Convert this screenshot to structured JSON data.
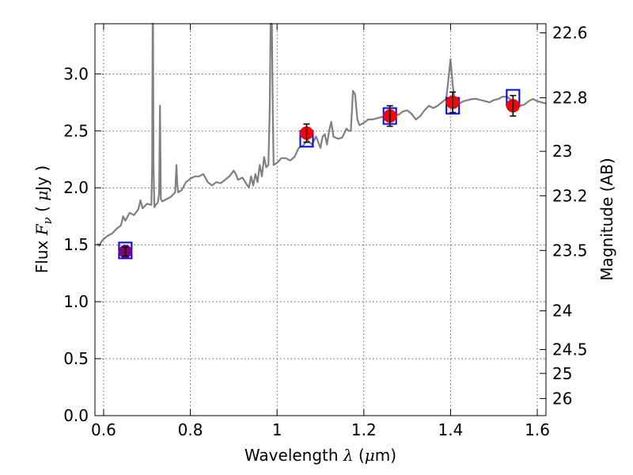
{
  "chart_data": {
    "type": "line",
    "xlabel_parts": [
      "Wavelength ",
      "λ",
      " (",
      "μ",
      "m)"
    ],
    "ylabel_parts": [
      "Flux ",
      "F",
      "ν",
      " ( ",
      "μ",
      "Jy )"
    ],
    "y2label": "Magnitude (AB)",
    "xlim": [
      0.58,
      1.62
    ],
    "ylim": [
      0.0,
      3.44
    ],
    "grid": true,
    "x_ticks": [
      0.6,
      0.8,
      1.0,
      1.2,
      1.4,
      1.6
    ],
    "x_tick_labels": [
      "0.6",
      "0.8",
      "1",
      "1.2",
      "1.4",
      "1.6"
    ],
    "y_ticks": [
      0.0,
      0.5,
      1.0,
      1.5,
      2.0,
      2.5,
      3.0
    ],
    "y_tick_labels": [
      "0.0",
      "0.5",
      "1.0",
      "1.5",
      "2.0",
      "2.5",
      "3.0"
    ],
    "y2_ticks": [
      {
        "flux": 3.36,
        "label": "22.6"
      },
      {
        "flux": 2.79,
        "label": "22.8"
      },
      {
        "flux": 2.32,
        "label": "23"
      },
      {
        "flux": 1.93,
        "label": "23.2"
      },
      {
        "flux": 1.45,
        "label": "23.5"
      },
      {
        "flux": 0.92,
        "label": "24"
      },
      {
        "flux": 0.58,
        "label": "24.5"
      },
      {
        "flux": 0.37,
        "label": "25"
      },
      {
        "flux": 0.15,
        "label": "26"
      }
    ],
    "series": [
      {
        "kind": "line",
        "color": "#808080",
        "points": [
          [
            0.585,
            1.51
          ],
          [
            0.59,
            1.49
          ],
          [
            0.595,
            1.53
          ],
          [
            0.6,
            1.55
          ],
          [
            0.61,
            1.58
          ],
          [
            0.62,
            1.6
          ],
          [
            0.63,
            1.64
          ],
          [
            0.64,
            1.67
          ],
          [
            0.645,
            1.75
          ],
          [
            0.65,
            1.71
          ],
          [
            0.66,
            1.78
          ],
          [
            0.67,
            1.76
          ],
          [
            0.68,
            1.81
          ],
          [
            0.685,
            1.89
          ],
          [
            0.69,
            1.82
          ],
          [
            0.7,
            1.86
          ],
          [
            0.71,
            1.85
          ],
          [
            0.712,
            2.2
          ],
          [
            0.713,
            3.44
          ],
          [
            0.714,
            3.44
          ],
          [
            0.715,
            2.2
          ],
          [
            0.717,
            1.83
          ],
          [
            0.72,
            1.85
          ],
          [
            0.725,
            1.87
          ],
          [
            0.728,
            1.95
          ],
          [
            0.73,
            2.72
          ],
          [
            0.732,
            1.9
          ],
          [
            0.735,
            1.88
          ],
          [
            0.745,
            1.9
          ],
          [
            0.755,
            1.92
          ],
          [
            0.765,
            1.96
          ],
          [
            0.768,
            2.2
          ],
          [
            0.77,
            2.03
          ],
          [
            0.772,
            1.96
          ],
          [
            0.78,
            1.98
          ],
          [
            0.79,
            2.05
          ],
          [
            0.8,
            2.08
          ],
          [
            0.81,
            2.1
          ],
          [
            0.82,
            2.1
          ],
          [
            0.83,
            2.12
          ],
          [
            0.84,
            2.05
          ],
          [
            0.85,
            2.02
          ],
          [
            0.86,
            2.05
          ],
          [
            0.87,
            2.04
          ],
          [
            0.88,
            2.07
          ],
          [
            0.89,
            2.1
          ],
          [
            0.9,
            2.15
          ],
          [
            0.905,
            2.12
          ],
          [
            0.91,
            2.07
          ],
          [
            0.92,
            2.09
          ],
          [
            0.93,
            2.03
          ],
          [
            0.935,
            2.0
          ],
          [
            0.94,
            2.1
          ],
          [
            0.945,
            2.02
          ],
          [
            0.95,
            2.12
          ],
          [
            0.955,
            2.05
          ],
          [
            0.96,
            2.2
          ],
          [
            0.965,
            2.1
          ],
          [
            0.97,
            2.27
          ],
          [
            0.975,
            2.18
          ],
          [
            0.98,
            2.2
          ],
          [
            0.983,
            2.7
          ],
          [
            0.985,
            3.44
          ],
          [
            0.988,
            3.44
          ],
          [
            0.99,
            2.7
          ],
          [
            0.992,
            2.2
          ],
          [
            1.0,
            2.22
          ],
          [
            1.01,
            2.26
          ],
          [
            1.02,
            2.26
          ],
          [
            1.03,
            2.24
          ],
          [
            1.04,
            2.27
          ],
          [
            1.05,
            2.35
          ],
          [
            1.06,
            2.37
          ],
          [
            1.07,
            2.42
          ],
          [
            1.08,
            2.38
          ],
          [
            1.09,
            2.45
          ],
          [
            1.1,
            2.35
          ],
          [
            1.105,
            2.45
          ],
          [
            1.11,
            2.47
          ],
          [
            1.115,
            2.38
          ],
          [
            1.12,
            2.5
          ],
          [
            1.125,
            2.58
          ],
          [
            1.13,
            2.45
          ],
          [
            1.14,
            2.43
          ],
          [
            1.15,
            2.44
          ],
          [
            1.16,
            2.52
          ],
          [
            1.165,
            2.5
          ],
          [
            1.17,
            2.5
          ],
          [
            1.175,
            2.85
          ],
          [
            1.18,
            2.82
          ],
          [
            1.185,
            2.6
          ],
          [
            1.19,
            2.55
          ],
          [
            1.2,
            2.57
          ],
          [
            1.21,
            2.6
          ],
          [
            1.22,
            2.6
          ],
          [
            1.23,
            2.61
          ],
          [
            1.24,
            2.62
          ],
          [
            1.25,
            2.63
          ],
          [
            1.26,
            2.62
          ],
          [
            1.27,
            2.65
          ],
          [
            1.28,
            2.64
          ],
          [
            1.29,
            2.67
          ],
          [
            1.3,
            2.68
          ],
          [
            1.31,
            2.65
          ],
          [
            1.32,
            2.6
          ],
          [
            1.33,
            2.63
          ],
          [
            1.34,
            2.68
          ],
          [
            1.35,
            2.72
          ],
          [
            1.36,
            2.7
          ],
          [
            1.37,
            2.72
          ],
          [
            1.38,
            2.75
          ],
          [
            1.39,
            2.78
          ],
          [
            1.395,
            2.95
          ],
          [
            1.4,
            3.13
          ],
          [
            1.405,
            2.9
          ],
          [
            1.41,
            2.76
          ],
          [
            1.42,
            2.74
          ],
          [
            1.43,
            2.76
          ],
          [
            1.44,
            2.77
          ],
          [
            1.45,
            2.78
          ],
          [
            1.46,
            2.78
          ],
          [
            1.47,
            2.77
          ],
          [
            1.48,
            2.76
          ],
          [
            1.49,
            2.75
          ],
          [
            1.5,
            2.77
          ],
          [
            1.51,
            2.78
          ],
          [
            1.52,
            2.8
          ],
          [
            1.53,
            2.8
          ],
          [
            1.54,
            2.77
          ],
          [
            1.55,
            2.75
          ],
          [
            1.56,
            2.72
          ],
          [
            1.57,
            2.73
          ],
          [
            1.58,
            2.76
          ],
          [
            1.59,
            2.78
          ],
          [
            1.6,
            2.76
          ],
          [
            1.61,
            2.75
          ],
          [
            1.62,
            2.74
          ]
        ]
      },
      {
        "kind": "squares",
        "color": "#0000ff",
        "points": [
          [
            0.65,
            1.45
          ],
          [
            1.068,
            2.43
          ],
          [
            1.26,
            2.63
          ],
          [
            1.405,
            2.72
          ],
          [
            1.544,
            2.79
          ]
        ]
      },
      {
        "kind": "points-with-errors",
        "color": "#ff0000",
        "points": [
          {
            "x": 0.65,
            "y": 1.44,
            "err": 0.04,
            "color": "#800080"
          },
          {
            "x": 1.068,
            "y": 2.48,
            "err": 0.08
          },
          {
            "x": 1.26,
            "y": 2.63,
            "err": 0.09
          },
          {
            "x": 1.405,
            "y": 2.75,
            "err": 0.09
          },
          {
            "x": 1.544,
            "y": 2.72,
            "err": 0.09
          }
        ]
      }
    ]
  }
}
